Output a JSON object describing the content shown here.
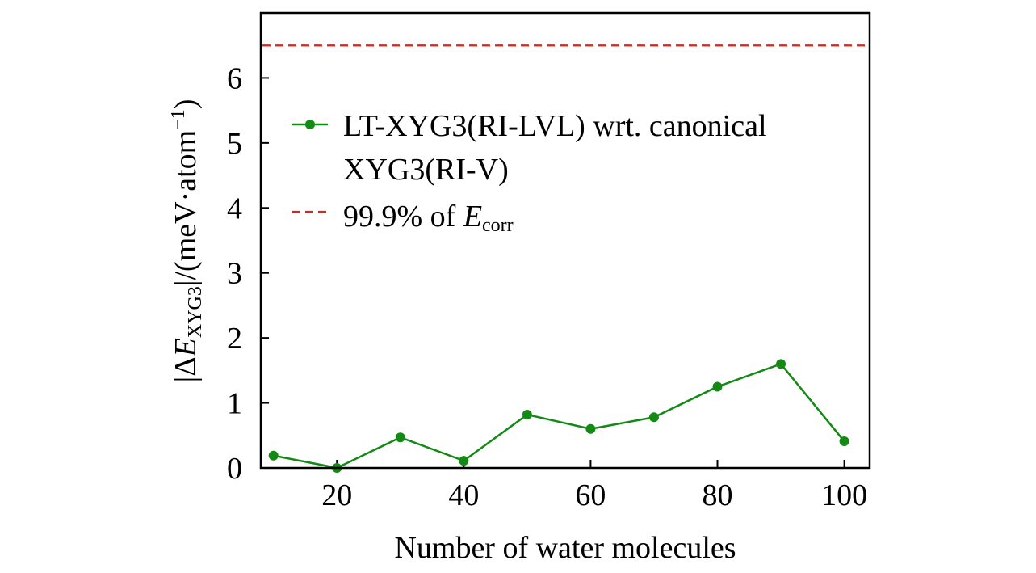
{
  "chart_data": {
    "type": "line",
    "xlabel": "Number of water molecules",
    "ylabel": {
      "prefix": "|Δ",
      "symbol": "E",
      "subscript": "XYG3",
      "suffix": "|/(meV·atom",
      "superscript": "−1",
      "close": ")"
    },
    "xlim": [
      8,
      104
    ],
    "ylim": [
      0,
      7
    ],
    "xticks": [
      20,
      40,
      60,
      80,
      100
    ],
    "yticks": [
      0,
      1,
      2,
      3,
      4,
      5,
      6
    ],
    "series": [
      {
        "name": "LT-XYG3(RI-LVL) wrt. canonical XYG3(RI-V)",
        "color": "#138a13",
        "marker": "circle",
        "x": [
          10,
          20,
          30,
          40,
          50,
          60,
          70,
          80,
          90,
          100
        ],
        "y": [
          0.19,
          0.0,
          0.47,
          0.11,
          0.82,
          0.6,
          0.78,
          1.25,
          1.6,
          0.41
        ]
      }
    ],
    "reference_lines": [
      {
        "name": "99.9% of E_corr",
        "y": 6.5,
        "color": "#e8201c",
        "style": "dashed"
      }
    ],
    "legend": {
      "position": "upper-center",
      "entries": [
        {
          "kind": "line-marker",
          "color": "#138a13",
          "line1": "LT-XYG3(RI-LVL) wrt. canonical",
          "line2": "XYG3(RI-V)"
        },
        {
          "kind": "dashed",
          "color": "#e8201c",
          "text": "99.9% of ",
          "symbol": "E",
          "subscript": "corr"
        }
      ]
    }
  }
}
